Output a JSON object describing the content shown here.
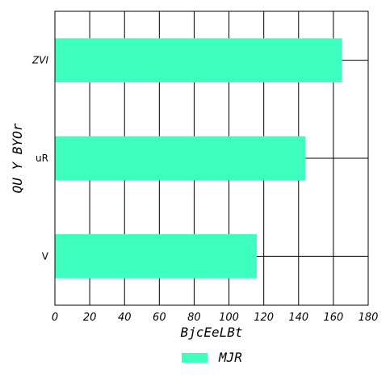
{
  "chart_data": {
    "type": "bar",
    "orientation": "horizontal",
    "categories": [
      "ZVI",
      "uR",
      "V"
    ],
    "series": [
      {
        "name": "MJR",
        "values": [
          165,
          144,
          116
        ],
        "color": "#3dffbe"
      }
    ],
    "xlabel": "BjcEeLBt",
    "ylabel": "QU Y BYOr",
    "xlim": [
      0,
      180
    ],
    "xticks": [
      0,
      20,
      40,
      60,
      80,
      100,
      120,
      140,
      160,
      180
    ],
    "grid": true,
    "legend_position": "bottom-center"
  }
}
